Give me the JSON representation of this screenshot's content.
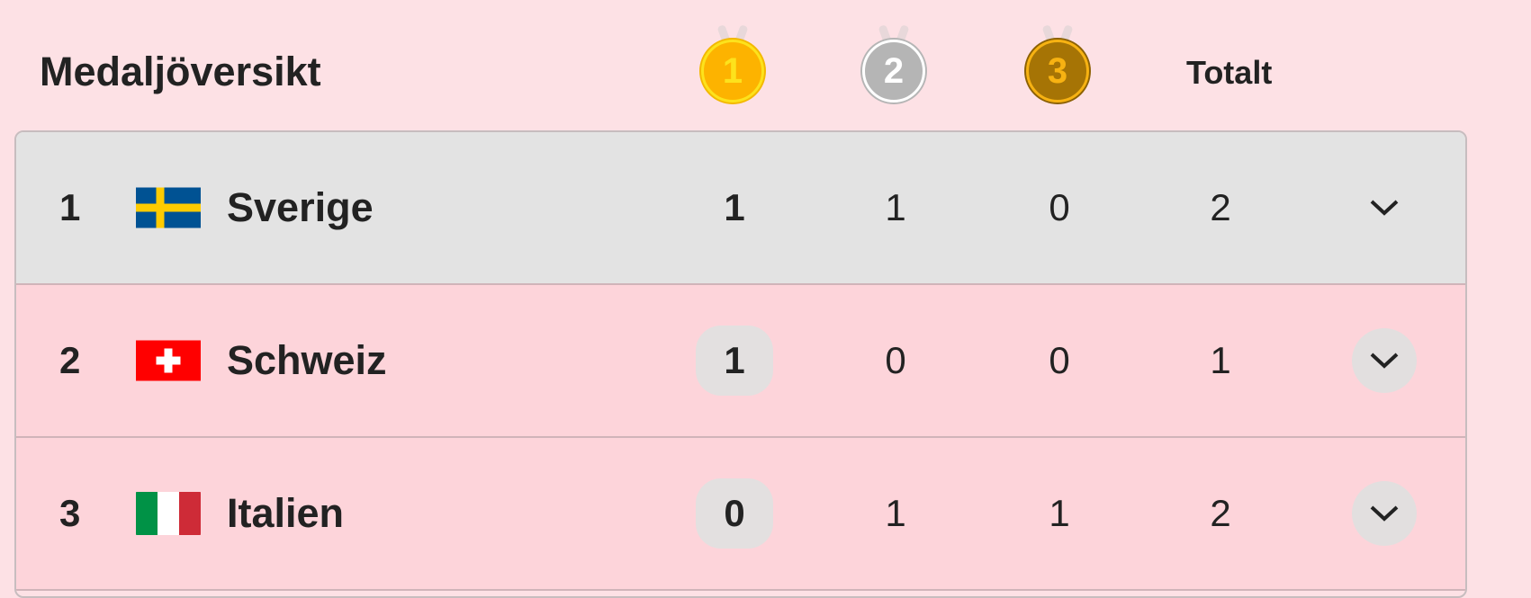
{
  "title": "Medaljöversikt",
  "headers": {
    "gold": "1",
    "silver": "2",
    "bronze": "3",
    "total": "Totalt"
  },
  "colors": {
    "gold": "#fdb300",
    "silver": "#b5b5b5",
    "bronze": "#a67405",
    "highlight_row": "#e3e3e3",
    "row": "#fdd4da",
    "background": "#fde1e5"
  },
  "rows": [
    {
      "rank": "1",
      "country": "Sverige",
      "flag": "sweden-flag",
      "gold": "1",
      "silver": "1",
      "bronze": "0",
      "total": "2"
    },
    {
      "rank": "2",
      "country": "Schweiz",
      "flag": "switzerland-flag",
      "gold": "1",
      "silver": "0",
      "bronze": "0",
      "total": "1"
    },
    {
      "rank": "3",
      "country": "Italien",
      "flag": "italy-flag",
      "gold": "0",
      "silver": "1",
      "bronze": "1",
      "total": "2"
    }
  ]
}
